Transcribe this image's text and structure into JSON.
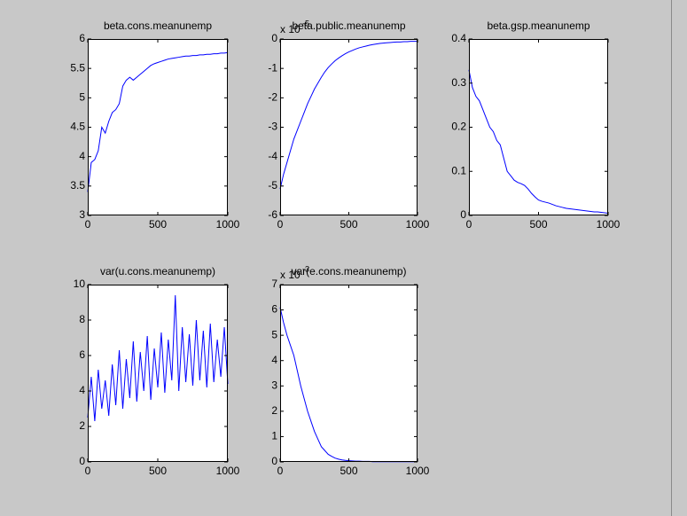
{
  "chart_data": [
    {
      "type": "line",
      "title": "beta.cons.meanunemp",
      "color": "#0000ff",
      "x": [
        0,
        25,
        50,
        75,
        100,
        125,
        150,
        175,
        200,
        225,
        250,
        275,
        300,
        325,
        350,
        375,
        400,
        425,
        450,
        475,
        500,
        525,
        550,
        575,
        600,
        625,
        650,
        675,
        700,
        725,
        750,
        775,
        800,
        825,
        850,
        875,
        900,
        925,
        950,
        975,
        1000
      ],
      "values": [
        3.4,
        3.9,
        3.95,
        4.1,
        4.5,
        4.4,
        4.6,
        4.75,
        4.8,
        4.9,
        5.2,
        5.3,
        5.35,
        5.3,
        5.35,
        5.4,
        5.45,
        5.5,
        5.55,
        5.58,
        5.6,
        5.62,
        5.64,
        5.66,
        5.67,
        5.68,
        5.69,
        5.7,
        5.71,
        5.71,
        5.72,
        5.72,
        5.73,
        5.73,
        5.74,
        5.74,
        5.75,
        5.75,
        5.76,
        5.76,
        5.77
      ],
      "xlim": [
        0,
        1000
      ],
      "xticks": [
        0,
        500,
        1000
      ],
      "ylim": [
        3,
        6
      ],
      "yticks": [
        3,
        3.5,
        4,
        4.5,
        5,
        5.5,
        6
      ]
    },
    {
      "type": "line",
      "title": "beta.public.meanunemp",
      "axis_multiplier": {
        "base": "x 10",
        "power": "-5"
      },
      "color": "#0000ff",
      "x": [
        0,
        25,
        50,
        75,
        100,
        125,
        150,
        175,
        200,
        225,
        250,
        275,
        300,
        325,
        350,
        375,
        400,
        425,
        450,
        475,
        500,
        525,
        550,
        575,
        600,
        625,
        650,
        675,
        700,
        725,
        750,
        775,
        800,
        825,
        850,
        875,
        900,
        925,
        950,
        975,
        1000
      ],
      "values": [
        -5.1,
        -4.6,
        -4.2,
        -3.8,
        -3.4,
        -3.1,
        -2.8,
        -2.5,
        -2.2,
        -1.95,
        -1.7,
        -1.5,
        -1.3,
        -1.12,
        -0.97,
        -0.85,
        -0.74,
        -0.65,
        -0.57,
        -0.5,
        -0.44,
        -0.39,
        -0.34,
        -0.3,
        -0.27,
        -0.24,
        -0.21,
        -0.19,
        -0.17,
        -0.15,
        -0.14,
        -0.13,
        -0.12,
        -0.11,
        -0.1,
        -0.1,
        -0.09,
        -0.09,
        -0.08,
        -0.08,
        -0.08
      ],
      "xlim": [
        0,
        1000
      ],
      "xticks": [
        0,
        500,
        1000
      ],
      "ylim": [
        -6,
        0
      ],
      "yticks": [
        -6,
        -5,
        -4,
        -3,
        -2,
        -1,
        0
      ]
    },
    {
      "type": "line",
      "title": "beta.gsp.meanunemp",
      "color": "#0000ff",
      "x": [
        0,
        25,
        50,
        75,
        100,
        125,
        150,
        175,
        200,
        225,
        250,
        275,
        300,
        325,
        350,
        375,
        400,
        425,
        450,
        475,
        500,
        525,
        550,
        575,
        600,
        625,
        650,
        675,
        700,
        725,
        750,
        775,
        800,
        825,
        850,
        875,
        900,
        925,
        950,
        975,
        1000
      ],
      "values": [
        0.33,
        0.29,
        0.27,
        0.26,
        0.24,
        0.22,
        0.2,
        0.19,
        0.17,
        0.16,
        0.13,
        0.1,
        0.09,
        0.08,
        0.075,
        0.072,
        0.068,
        0.06,
        0.05,
        0.042,
        0.035,
        0.032,
        0.03,
        0.028,
        0.025,
        0.022,
        0.02,
        0.018,
        0.016,
        0.015,
        0.014,
        0.013,
        0.012,
        0.011,
        0.01,
        0.009,
        0.008,
        0.008,
        0.007,
        0.006,
        0.005
      ],
      "xlim": [
        0,
        1000
      ],
      "xticks": [
        0,
        500,
        1000
      ],
      "ylim": [
        0,
        0.4
      ],
      "yticks": [
        0,
        0.1,
        0.2,
        0.3,
        0.4
      ]
    },
    {
      "type": "line",
      "title": "var(u.cons.meanunemp)",
      "color": "#0000ff",
      "x": [
        0,
        25,
        50,
        75,
        100,
        125,
        150,
        175,
        200,
        225,
        250,
        275,
        300,
        325,
        350,
        375,
        400,
        425,
        450,
        475,
        500,
        525,
        550,
        575,
        600,
        625,
        650,
        675,
        700,
        725,
        750,
        775,
        800,
        825,
        850,
        875,
        900,
        925,
        950,
        975,
        1000
      ],
      "values": [
        2.5,
        4.8,
        2.3,
        5.2,
        3.0,
        4.6,
        2.6,
        5.5,
        3.2,
        6.3,
        3.0,
        5.8,
        3.6,
        6.8,
        3.4,
        6.2,
        4.0,
        7.1,
        3.5,
        6.4,
        4.2,
        7.3,
        3.9,
        6.9,
        4.6,
        9.4,
        4.0,
        7.6,
        4.5,
        7.2,
        4.3,
        8.0,
        4.6,
        7.4,
        4.2,
        7.8,
        4.5,
        6.9,
        4.8,
        7.6,
        4.4
      ],
      "xlim": [
        0,
        1000
      ],
      "xticks": [
        0,
        500,
        1000
      ],
      "ylim": [
        0,
        10
      ],
      "yticks": [
        0,
        2,
        4,
        6,
        8,
        10
      ]
    },
    {
      "type": "line",
      "title": "var(e.cons.meanunemp)",
      "axis_multiplier": {
        "base": "x 10",
        "power": "-3"
      },
      "color": "#0000ff",
      "x": [
        0,
        25,
        50,
        75,
        100,
        125,
        150,
        175,
        200,
        225,
        250,
        275,
        300,
        325,
        350,
        375,
        400,
        425,
        450,
        475,
        500,
        525,
        550,
        575,
        600,
        625,
        650,
        675,
        700,
        725,
        750,
        775,
        800,
        825,
        850,
        875,
        900,
        925,
        950,
        975,
        1000
      ],
      "values": [
        6.1,
        5.5,
        5.0,
        4.6,
        4.2,
        3.6,
        3.0,
        2.5,
        2.0,
        1.6,
        1.2,
        0.9,
        0.6,
        0.45,
        0.3,
        0.22,
        0.15,
        0.11,
        0.08,
        0.06,
        0.05,
        0.04,
        0.03,
        0.03,
        0.02,
        0.02,
        0.02,
        0.01,
        0.01,
        0.01,
        0.01,
        0.01,
        0.01,
        0.01,
        0.01,
        0.01,
        0.01,
        0.01,
        0.01,
        0.01,
        0.01
      ],
      "xlim": [
        0,
        1000
      ],
      "xticks": [
        0,
        500,
        1000
      ],
      "ylim": [
        0,
        7
      ],
      "yticks": [
        0,
        1,
        2,
        3,
        4,
        5,
        6,
        7
      ]
    }
  ]
}
